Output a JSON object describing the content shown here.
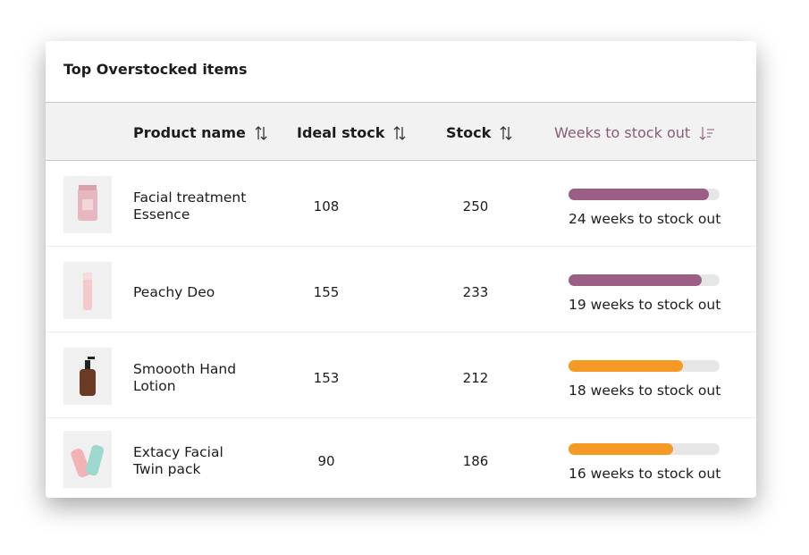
{
  "title": "Top Overstocked items",
  "table": {
    "columns": [
      "Product name",
      "Ideal stock",
      "Stock",
      "Weeks to stock out"
    ],
    "rows": [
      {
        "product": "Facial treatment Essence",
        "ideal_stock": 108,
        "stock": 250,
        "weeks_label": "24 weeks to stock out",
        "progress": 93,
        "color": "#9b5f86"
      },
      {
        "product": "Peachy Deo",
        "ideal_stock": 155,
        "stock": 233,
        "weeks_label": "19 weeks to stock out",
        "progress": 88,
        "color": "#9b5f86"
      },
      {
        "product": "Smoooth Hand Lotion",
        "ideal_stock": 153,
        "stock": 212,
        "weeks_label": "18 weeks to stock out",
        "progress": 76,
        "color": "#f49a25"
      },
      {
        "product": "Extacy Facial Twin pack",
        "ideal_stock": 90,
        "stock": 186,
        "weeks_label": "16 weeks to stock out",
        "progress": 69,
        "color": "#f49a25"
      }
    ]
  }
}
